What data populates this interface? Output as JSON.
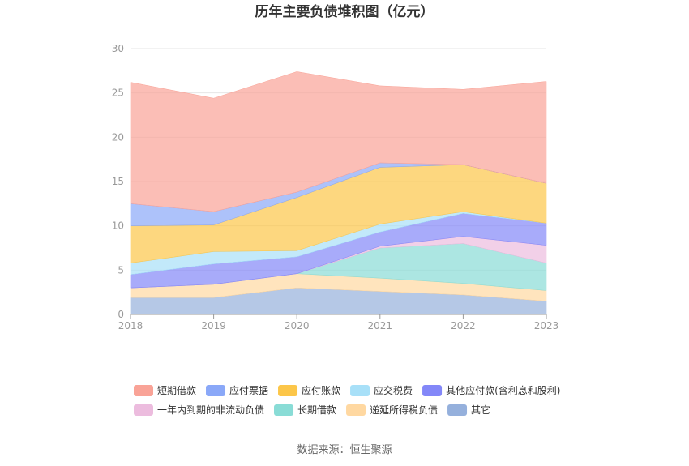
{
  "chart_data": {
    "type": "area",
    "stacked": true,
    "title": "历年主要负债堆积图（亿元）",
    "x": [
      "2018",
      "2019",
      "2020",
      "2021",
      "2022",
      "2023"
    ],
    "ylim": [
      0,
      30
    ],
    "yticks": [
      0,
      5,
      10,
      15,
      20,
      25,
      30
    ],
    "grid": "horizontal",
    "legend_position": "bottom",
    "series": [
      {
        "name": "其它",
        "color": "#95b0dc",
        "values": [
          1.9,
          1.9,
          3.0,
          2.6,
          2.2,
          1.5
        ]
      },
      {
        "name": "递延所得税负债",
        "color": "#ffd8a1",
        "values": [
          1.1,
          1.5,
          1.6,
          1.5,
          1.3,
          1.2
        ]
      },
      {
        "name": "长期借款",
        "color": "#89dcd6",
        "values": [
          0.0,
          0.0,
          0.0,
          3.4,
          4.5,
          3.1
        ]
      },
      {
        "name": "一年内到期的非流动负债",
        "color": "#ecbcde",
        "values": [
          0.0,
          0.0,
          0.0,
          0.2,
          0.8,
          2.0
        ]
      },
      {
        "name": "其他应付款(含利息和股利)",
        "color": "#8387f8",
        "values": [
          1.5,
          2.3,
          1.9,
          1.6,
          2.6,
          2.5
        ]
      },
      {
        "name": "应交税费",
        "color": "#a8e0f8",
        "values": [
          1.3,
          1.4,
          0.7,
          0.9,
          0.2,
          0.0
        ]
      },
      {
        "name": "应付账款",
        "color": "#fcc649",
        "values": [
          4.2,
          3.0,
          6.0,
          6.4,
          5.3,
          4.5
        ]
      },
      {
        "name": "应付票据",
        "color": "#8aa8f8",
        "values": [
          2.5,
          1.5,
          0.6,
          0.5,
          0.0,
          0.0
        ]
      },
      {
        "name": "短期借款",
        "color": "#f9a397",
        "values": [
          13.7,
          12.8,
          13.6,
          8.7,
          8.5,
          11.5
        ]
      }
    ],
    "legend_order": [
      "短期借款",
      "应付票据",
      "应付账款",
      "应交税费",
      "其他应付款(含利息和股利)",
      "一年内到期的非流动负债",
      "长期借款",
      "递延所得税负债",
      "其它"
    ]
  },
  "source_text": "数据来源：恒生聚源"
}
